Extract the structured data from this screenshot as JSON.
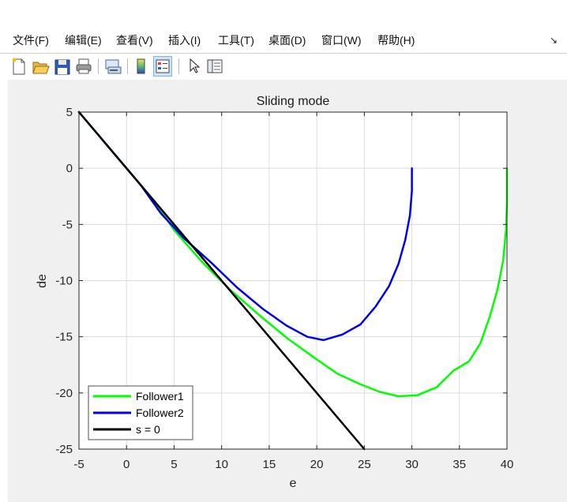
{
  "menubar": {
    "items": [
      "文件(F)",
      "编辑(E)",
      "查看(V)",
      "插入(I)",
      "工具(T)",
      "桌面(D)",
      "窗口(W)",
      "帮助(H)"
    ],
    "dock_arrow": "↘"
  },
  "toolbar": {
    "icons": [
      "new-figure-icon",
      "open-file-icon",
      "save-icon",
      "print-icon",
      "link-plot-icon",
      "colorbar-icon",
      "legend-icon",
      "pointer-icon",
      "property-inspector-icon"
    ]
  },
  "colors": {
    "follower1": "#00ff00",
    "follower2": "#0000ee",
    "s0": "#000000",
    "figure_bg": "#f0f0f0"
  },
  "chart_data": {
    "type": "line",
    "title": "Sliding mode",
    "xlabel": "e",
    "ylabel": "de",
    "xlim": [
      -5,
      40
    ],
    "ylim": [
      -25,
      5
    ],
    "xticks": [
      -5,
      0,
      5,
      10,
      15,
      20,
      25,
      30,
      35,
      40
    ],
    "yticks": [
      5,
      0,
      -5,
      -10,
      -15,
      -20,
      -25
    ],
    "grid": true,
    "legend_position": "bottom-left",
    "series": [
      {
        "name": "Follower1",
        "x": [
          40,
          40,
          39.9,
          39.6,
          39.0,
          38.2,
          37.2,
          36.0,
          34.4,
          32.6,
          30.6,
          28.6,
          26.6,
          24.5,
          22.2,
          19.8,
          17.0,
          14.0,
          11.0,
          8.0,
          5.0,
          3.0,
          1.0,
          0,
          -2,
          -5
        ],
        "y": [
          0,
          -3,
          -5.5,
          -8.2,
          -10.8,
          -13.2,
          -15.6,
          -17.2,
          -18.0,
          -19.5,
          -20.2,
          -20.3,
          -19.9,
          -19.2,
          -18.3,
          -16.9,
          -15.2,
          -13.1,
          -10.9,
          -8.4,
          -5.5,
          -3.0,
          -1.0,
          0,
          2,
          5
        ]
      },
      {
        "name": "Follower2",
        "x": [
          30,
          30,
          29.8,
          29.3,
          28.6,
          27.6,
          26.2,
          24.6,
          22.7,
          20.7,
          19.0,
          16.8,
          14.3,
          11.6,
          8.9,
          6.0,
          3.6,
          1.5,
          0,
          -2,
          -5
        ],
        "y": [
          0,
          -2,
          -4.2,
          -6.4,
          -8.5,
          -10.5,
          -12.3,
          -13.9,
          -14.8,
          -15.3,
          -15.0,
          -14.0,
          -12.5,
          -10.6,
          -8.4,
          -6.2,
          -4.0,
          -1.5,
          0,
          2,
          5
        ]
      },
      {
        "name": "s = 0",
        "x": [
          -5,
          25
        ],
        "y": [
          5,
          -25
        ]
      }
    ]
  }
}
